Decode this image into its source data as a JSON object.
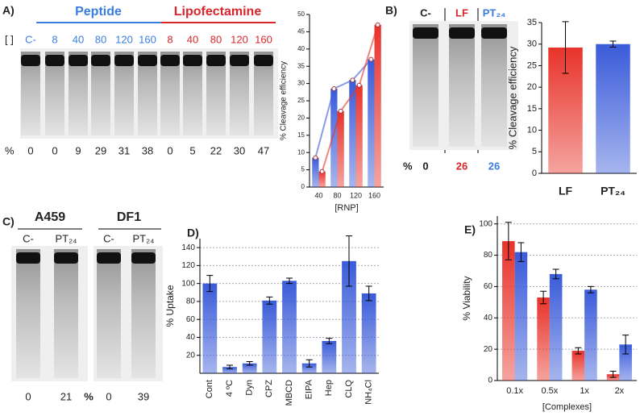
{
  "panel_labels": [
    "A)",
    "B)",
    "C)",
    "D)",
    "E)"
  ],
  "gel_a": {
    "conc_label": "[ ]",
    "groups": [
      "Peptide",
      "Lipofectamine"
    ],
    "lanes": [
      "C-",
      "8",
      "40",
      "80",
      "120",
      "160",
      "8",
      "40",
      "80",
      "120",
      "160"
    ],
    "percent_symbol": "%",
    "percents": [
      0,
      0,
      9,
      29,
      31,
      38,
      0,
      5,
      22,
      30,
      47
    ]
  },
  "gel_b": {
    "lanes": [
      "C-",
      "LF",
      "PT₂₄"
    ],
    "percent_symbol": "%",
    "percents": [
      0,
      26,
      26
    ]
  },
  "gel_c": {
    "cells": [
      "A459",
      "DF1"
    ],
    "lanes": [
      "C-",
      "PT₂₄",
      "C-",
      "PT₂₄"
    ],
    "percent_symbol": "%",
    "percents": [
      0,
      21,
      0,
      39
    ]
  },
  "chart_data": [
    {
      "type": "bar",
      "x_label": "[RNP]",
      "y_label": "% Cleavage efficiency",
      "categories": [
        "40",
        "80",
        "120",
        "160"
      ],
      "series": [
        {
          "color": "#3a5bd9",
          "values": [
            8.5,
            28.5,
            31,
            37
          ]
        },
        {
          "color": "#e8332a",
          "values": [
            4.5,
            22,
            29.5,
            47
          ]
        }
      ],
      "line_overlay": true,
      "ylim": [
        0,
        50
      ],
      "yticks": [
        0,
        5,
        10,
        15,
        20,
        25,
        30,
        35,
        40,
        45,
        50
      ],
      "grid": false
    },
    {
      "type": "bar",
      "y_label": "% Cleavage efficiency",
      "categories": [
        "LF",
        "PT₂₄"
      ],
      "values": [
        29.2,
        30
      ],
      "errors": [
        6,
        0.7
      ],
      "colors": [
        "#e8332a",
        "#3a5bd9"
      ],
      "ylim": [
        0,
        35
      ],
      "yticks": [
        0,
        5,
        10,
        15,
        20,
        25,
        30,
        35
      ],
      "grid": false
    },
    {
      "type": "bar",
      "y_label": "% Uptake",
      "categories": [
        "Cont",
        "4 ºC",
        "Dyn",
        "CPZ",
        "MBCD",
        "EIPA",
        "Hep",
        "CLQ",
        "NH₄Cl"
      ],
      "values": [
        100,
        7,
        11,
        81,
        103,
        11,
        36,
        125,
        89
      ],
      "errors": [
        9,
        2,
        2,
        4,
        3,
        4,
        3,
        28,
        8
      ],
      "color": "#3a5bd9",
      "ylim": [
        0,
        150
      ],
      "yticks": [
        20,
        40,
        60,
        80,
        100,
        120,
        140
      ],
      "grid": true
    },
    {
      "type": "bar",
      "x_label": "[Complexes]",
      "y_label": "% Viability",
      "categories": [
        "0.1x",
        "0.5x",
        "1x",
        "2x"
      ],
      "series": [
        {
          "color": "#e8332a",
          "values": [
            89,
            53,
            19,
            4
          ],
          "errors": [
            12,
            4,
            2,
            2
          ]
        },
        {
          "color": "#3a5bd9",
          "values": [
            82,
            68,
            58,
            23
          ],
          "errors": [
            6,
            3,
            2,
            6
          ]
        }
      ],
      "ylim": [
        0,
        105
      ],
      "yticks": [
        0,
        20,
        40,
        60,
        80,
        100
      ],
      "grid": true
    }
  ]
}
